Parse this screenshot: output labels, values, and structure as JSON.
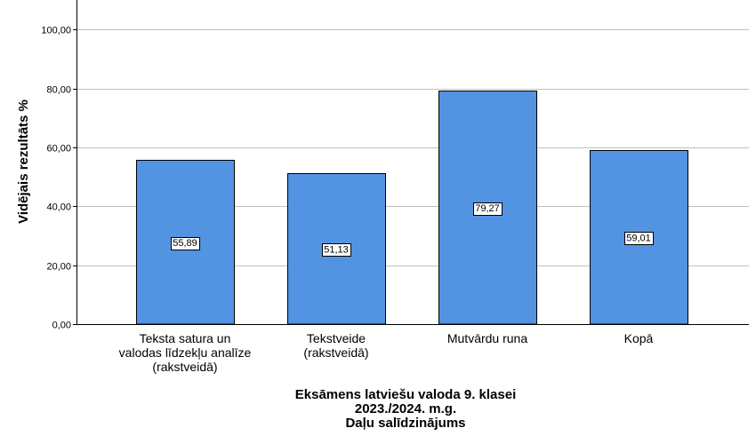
{
  "chart_data": {
    "type": "bar",
    "categories": [
      [
        "Teksta satura un",
        "valodas līdzekļu analīze",
        "(rakstveidā)"
      ],
      [
        "Tekstveide",
        "(rakstveidā)"
      ],
      [
        "Mutvārdu runa"
      ],
      [
        "Kopā"
      ]
    ],
    "values": [
      55.89,
      51.13,
      79.27,
      59.01
    ],
    "data_labels": [
      "55,89",
      "51,13",
      "79,27",
      "59,01"
    ],
    "ylabel": "Vidējais rezultāts %",
    "xlabel": [
      "Eksāmens latviešu valoda 9. klasei",
      "2023./2024. m.g.",
      "Daļu salīdzinājums"
    ],
    "yticks": [
      0,
      20,
      40,
      60,
      80,
      100
    ],
    "ytick_labels": [
      "0,00",
      "20,00",
      "40,00",
      "60,00",
      "80,00",
      "100,00"
    ],
    "ylim": [
      0,
      110
    ],
    "grid": true,
    "colors": {
      "bar": "#5294E2",
      "bar_stroke": "#000000",
      "grid": "#bfbfbf",
      "axis": "#000000"
    }
  }
}
